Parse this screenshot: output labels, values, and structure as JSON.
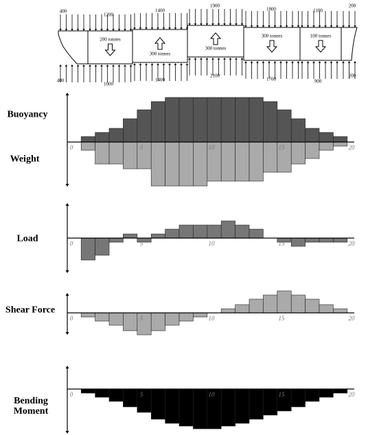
{
  "hull": {
    "weights_top": [
      "400",
      "1200",
      "1400",
      "1900",
      "1800",
      "1100",
      "200"
    ],
    "buoyancy_bottom": [
      "400",
      "1000",
      "1400",
      "2100",
      "1700",
      "900",
      "200"
    ],
    "sections": [
      "200 tonnes",
      "300 tonnes",
      "300 tonnes",
      "300 tonnes",
      "100 tonnes"
    ]
  },
  "chart_data": [
    {
      "type": "bar",
      "x": [
        1,
        2,
        3,
        4,
        5,
        6,
        7,
        8,
        9,
        10,
        11,
        12,
        13,
        14,
        15,
        16,
        17,
        18,
        19
      ],
      "xlim": [
        0,
        20
      ],
      "xticks": [
        0,
        5,
        10,
        15,
        20
      ],
      "ylim": [
        -65,
        72
      ],
      "series": [
        {
          "name": "Buoyancy",
          "color": "#555555",
          "values": [
            8,
            14,
            20,
            34,
            47,
            59,
            65,
            65,
            65,
            65,
            65,
            65,
            65,
            59,
            47,
            34,
            20,
            14,
            8
          ]
        },
        {
          "name": "Weight",
          "color": "#aaaaaa",
          "values": [
            -12,
            -32,
            -32,
            -39,
            -39,
            -64,
            -64,
            -64,
            -64,
            -57,
            -57,
            -57,
            -57,
            -44,
            -44,
            -32,
            -24,
            -12,
            -6
          ]
        }
      ]
    },
    {
      "type": "bar",
      "x": [
        1,
        2,
        3,
        4,
        5,
        6,
        7,
        8,
        9,
        10,
        11,
        12,
        13,
        14,
        15,
        16,
        17,
        18,
        19
      ],
      "xlim": [
        0,
        20
      ],
      "xticks": [
        0,
        5,
        10,
        15,
        20
      ],
      "ylim": [
        -51,
        51
      ],
      "series": [
        {
          "name": "Load",
          "color": "#777777",
          "values": [
            -32,
            -25,
            -6,
            6,
            -6,
            6,
            13,
            19,
            19,
            19,
            25,
            19,
            13,
            0,
            -6,
            -12,
            -6,
            -6,
            -6
          ]
        }
      ]
    },
    {
      "type": "bar",
      "x": [
        1,
        2,
        3,
        4,
        5,
        6,
        7,
        8,
        9,
        10,
        11,
        12,
        13,
        14,
        15,
        16,
        17,
        18,
        19
      ],
      "xlim": [
        0,
        20
      ],
      "xticks": [
        0,
        5,
        10,
        15,
        20
      ],
      "ylim": [
        -32,
        29
      ],
      "series": [
        {
          "name": "Shear Force",
          "color": "#aaaaaa",
          "values": [
            -6,
            -12,
            -18,
            -26,
            -32,
            -26,
            -18,
            -12,
            -6,
            0,
            6,
            12,
            20,
            26,
            32,
            26,
            20,
            12,
            6
          ]
        }
      ]
    },
    {
      "type": "bar",
      "x": [
        1,
        2,
        3,
        4,
        5,
        6,
        7,
        8,
        9,
        10,
        11,
        12,
        13,
        14,
        15,
        16,
        17,
        18,
        19
      ],
      "xlim": [
        0,
        20
      ],
      "xticks": [
        0,
        5,
        10,
        15,
        20
      ],
      "ylim": [
        -65,
        34
      ],
      "series": [
        {
          "name": "Bending Moment",
          "color": "#000000",
          "values": [
            -6,
            -12,
            -18,
            -26,
            -34,
            -44,
            -50,
            -54,
            -58,
            -58,
            -54,
            -50,
            -44,
            -38,
            -32,
            -26,
            -18,
            -12,
            -6
          ]
        }
      ]
    }
  ]
}
